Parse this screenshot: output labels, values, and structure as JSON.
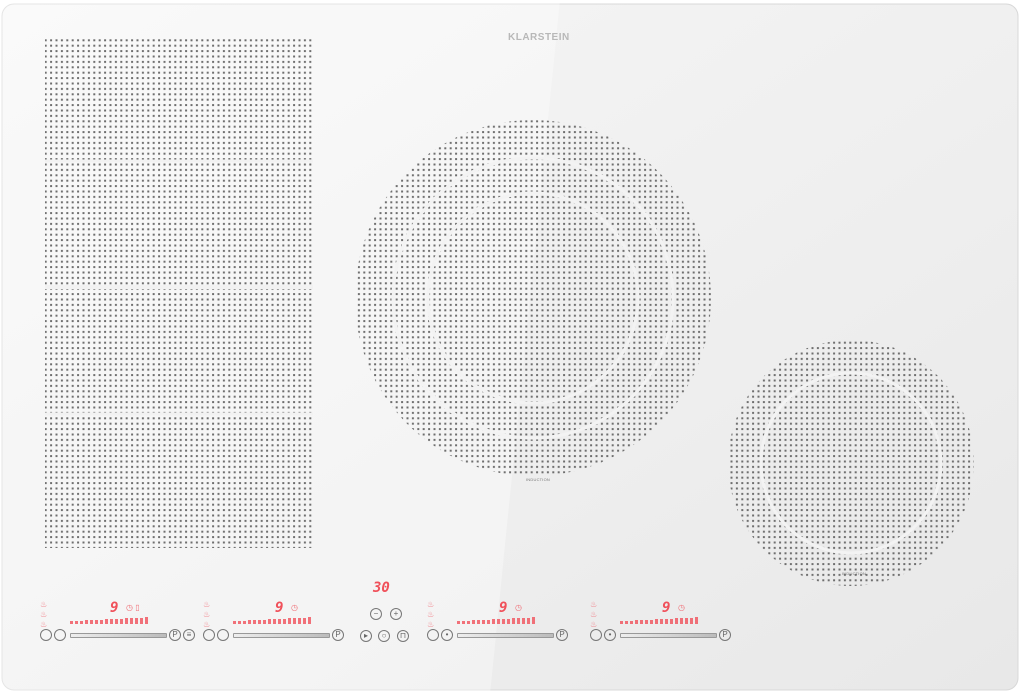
{
  "brand": "KLARSTEIN",
  "zone_labels": {
    "left": "INDUCTION",
    "right": "INDUCTION"
  },
  "timer": {
    "display": "30",
    "minus_icon": "minus-icon",
    "plus_icon": "plus-icon"
  },
  "zones": [
    {
      "level": "9",
      "has_flex_icon": true
    },
    {
      "level": "9",
      "has_flex_icon": false
    },
    {
      "level": "9",
      "has_flex_icon": false
    },
    {
      "level": "9",
      "has_flex_icon": false
    }
  ],
  "colors": {
    "glass": "#efefef",
    "dots": "#6e6e6e",
    "display": "#f0505a"
  }
}
